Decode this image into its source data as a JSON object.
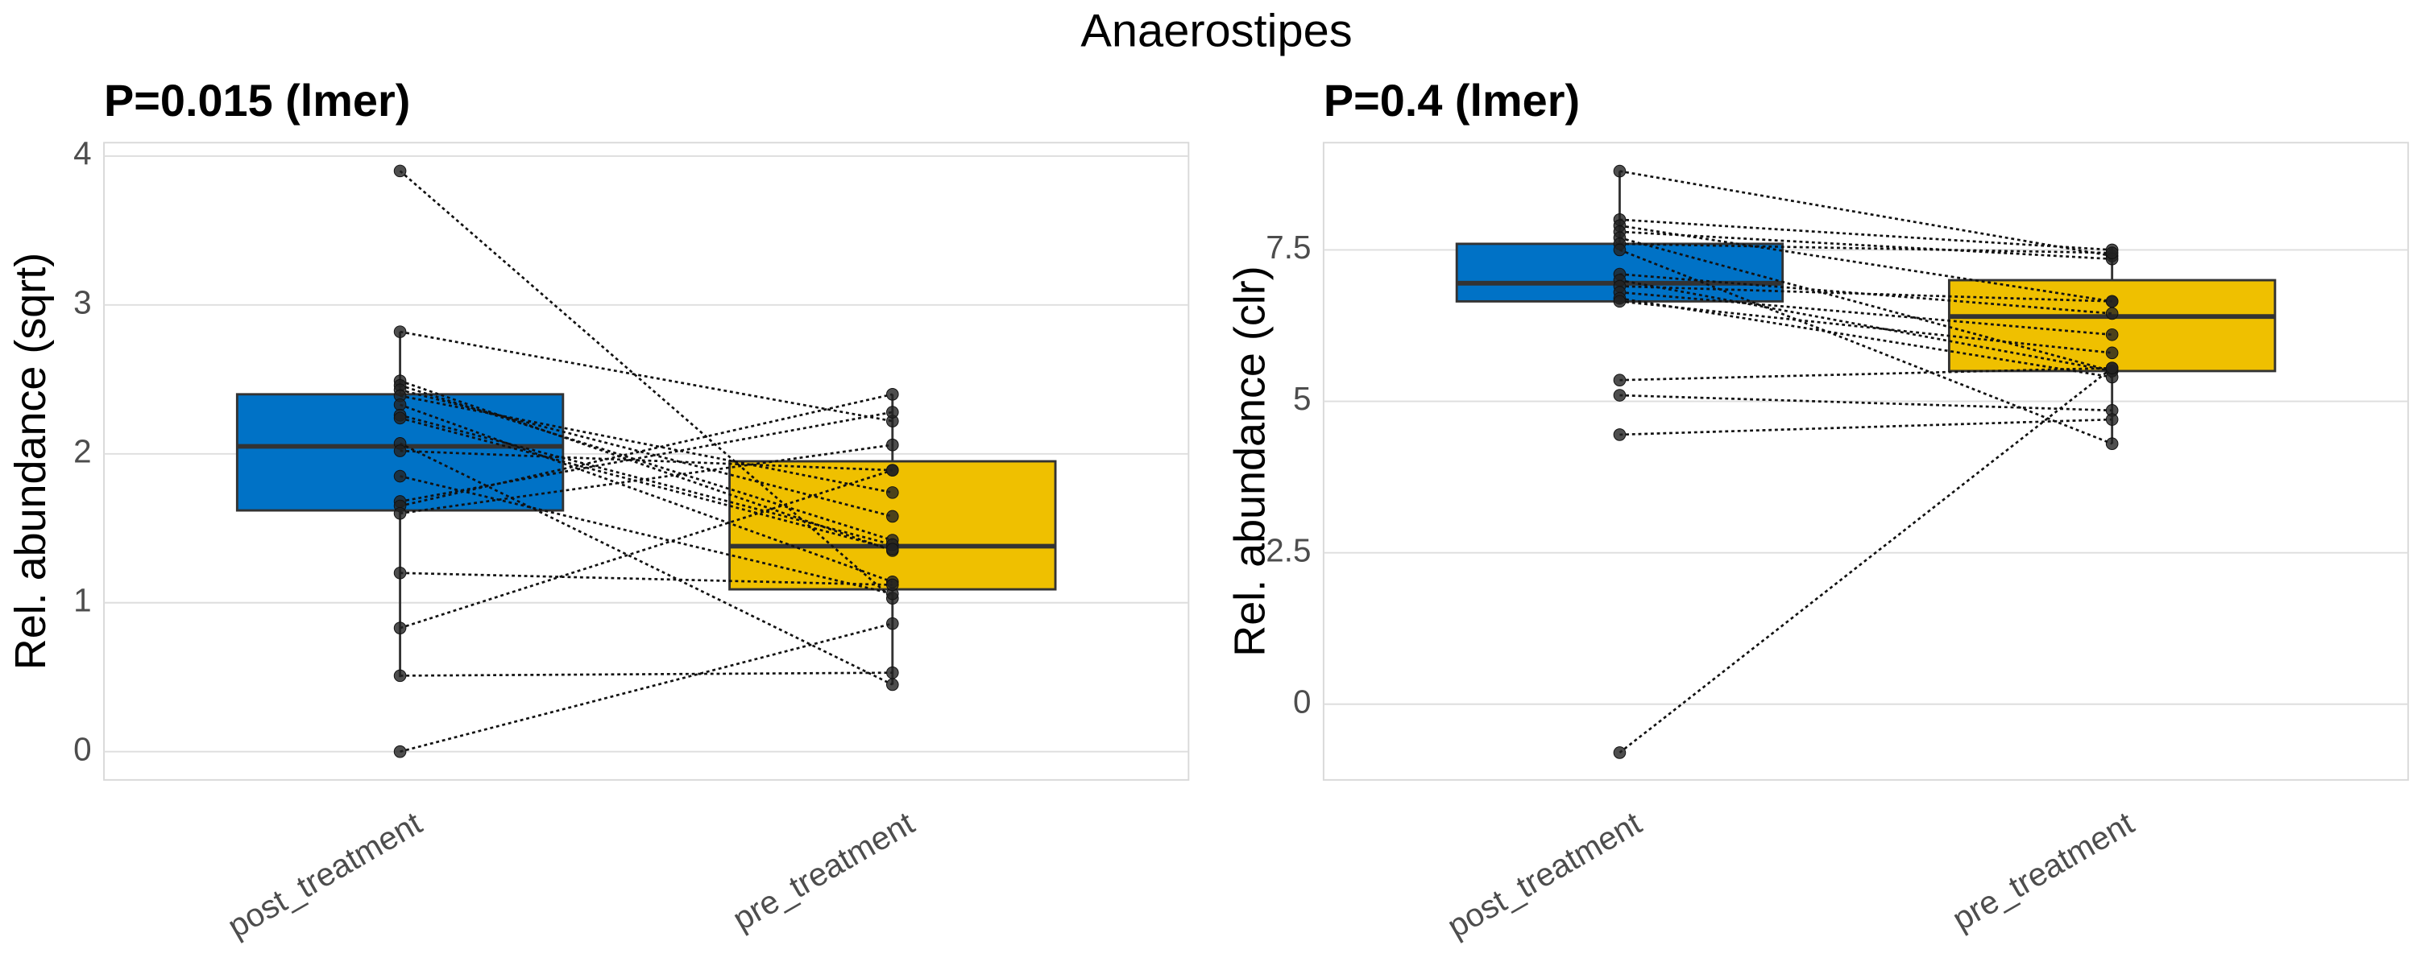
{
  "title": "Anaerostipes",
  "chart_data": [
    {
      "type": "box",
      "title": "P=0.015 (lmer)",
      "ylabel": "Rel. abundance (sqrt)",
      "categories": [
        "post_treatment",
        "pre_treatment"
      ],
      "ylim": [
        -0.19,
        4.09
      ],
      "yticks": [
        0,
        1,
        2,
        3,
        4
      ],
      "grid": true,
      "boxes": [
        {
          "whisker_low": 0.5,
          "q1": 1.62,
          "median": 2.05,
          "q3": 2.4,
          "whisker_high": 2.82,
          "color": "#0072c6"
        },
        {
          "whisker_low": 0.45,
          "q1": 1.09,
          "median": 1.38,
          "q3": 1.95,
          "whisker_high": 2.4,
          "color": "#efc000"
        }
      ],
      "points": [
        [
          3.9,
          2.82,
          2.49,
          2.46,
          2.43,
          2.39,
          2.33,
          2.26,
          2.24,
          2.07,
          2.02,
          1.85,
          1.68,
          1.65,
          1.6,
          1.2,
          0.83,
          0.51,
          0
        ],
        [
          1.03,
          2.22,
          1.35,
          1.42,
          1.58,
          1.74,
          1.14,
          1.39,
          1.36,
          0.45,
          1.89,
          1.06,
          2.28,
          2.4,
          2.06,
          1.12,
          1.89,
          0.53,
          0.86
        ]
      ]
    },
    {
      "type": "box",
      "title": "P=0.4 (lmer)",
      "ylabel": "Rel. abundance (clr)",
      "categories": [
        "post_treatment",
        "pre_treatment"
      ],
      "ylim": [
        -1.25,
        9.27
      ],
      "yticks": [
        0,
        2.5,
        5,
        7.5
      ],
      "grid": true,
      "boxes": [
        {
          "whisker_low": 6.6,
          "q1": 6.65,
          "median": 6.95,
          "q3": 7.6,
          "whisker_high": 8.8,
          "color": "#0072c6"
        },
        {
          "whisker_low": 4.3,
          "q1": 5.5,
          "median": 6.4,
          "q3": 7.0,
          "whisker_high": 7.55,
          "color": "#efc000"
        }
      ],
      "points": [
        [
          8.8,
          8.0,
          7.9,
          7.8,
          7.7,
          7.6,
          7.5,
          7.1,
          7.0,
          6.9,
          6.8,
          6.7,
          6.65,
          5.35,
          5.1,
          4.45,
          -0.8
        ],
        [
          7.4,
          7.5,
          6.65,
          7.35,
          5.5,
          7.45,
          4.3,
          6.45,
          5.5,
          6.65,
          6.1,
          5.4,
          5.8,
          5.55,
          4.85,
          4.7,
          5.55
        ]
      ]
    }
  ]
}
